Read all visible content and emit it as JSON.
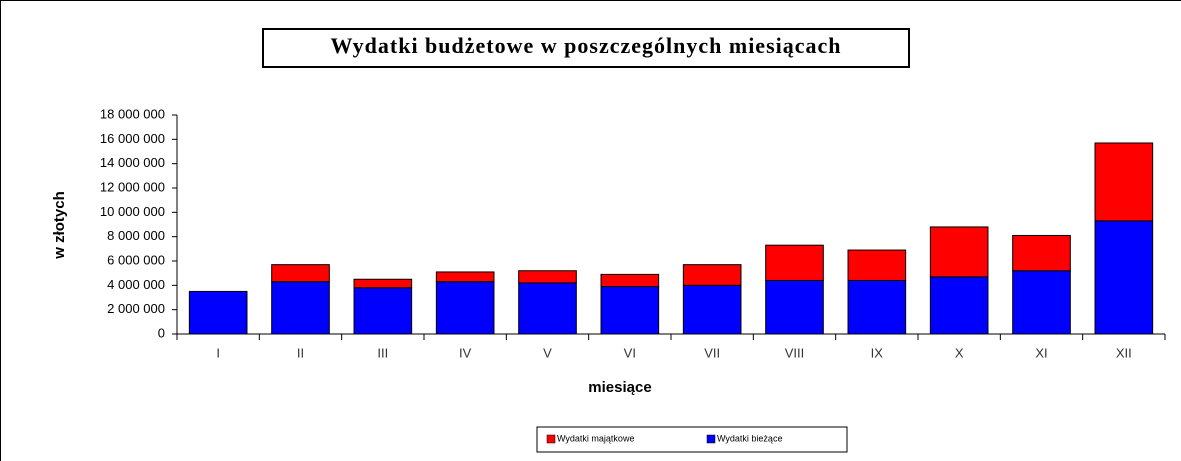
{
  "chart_data": {
    "type": "stacked_bar",
    "title": "Wydatki budżetowe w poszczególnych miesiącach",
    "x_label": "miesiące",
    "y_label": "w złotych",
    "categories": [
      "I",
      "II",
      "III",
      "IV",
      "V",
      "VI",
      "VII",
      "VIII",
      "IX",
      "X",
      "XI",
      "XII"
    ],
    "series": [
      {
        "name": "Wydatki bieżące",
        "color": "#0000ff",
        "values": [
          3500000,
          4300000,
          3800000,
          4300000,
          4200000,
          3900000,
          4000000,
          4400000,
          4400000,
          4700000,
          5200000,
          9300000
        ]
      },
      {
        "name": "Wydatki majątkowe",
        "color": "#ff0000",
        "values": [
          0,
          1400000,
          700000,
          800000,
          1000000,
          1000000,
          1700000,
          2900000,
          2500000,
          4100000,
          2900000,
          6400000
        ]
      }
    ],
    "ylim": [
      0,
      18000000
    ],
    "yticks": [
      0,
      {
        "value": 2000000,
        "label": "2 000 000"
      },
      {
        "value": 4000000,
        "label": "4 000 000"
      },
      {
        "value": 6000000,
        "label": "6 000 000"
      },
      {
        "value": 8000000,
        "label": "8 000 000"
      },
      {
        "value": 10000000,
        "label": "10 000 000"
      },
      {
        "value": 12000000,
        "label": "12 000 000"
      },
      {
        "value": 14000000,
        "label": "14 000 000"
      },
      {
        "value": 16000000,
        "label": "16 000 000"
      },
      {
        "value": 18000000,
        "label": "18 000 000"
      }
    ],
    "grid": false,
    "legend": "bottom"
  }
}
